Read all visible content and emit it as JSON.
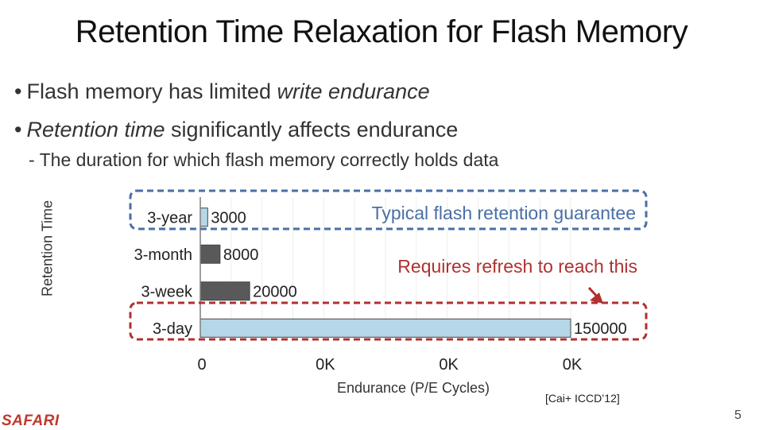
{
  "slide": {
    "title": "Retention Time Relaxation for Flash Memory",
    "bullets": [
      {
        "dot": "•",
        "pre": "Flash memory has limited ",
        "em": "write endurance",
        "post": ""
      },
      {
        "dot": "•",
        "pre": "",
        "em": "Retention time",
        "post": " significantly affects endurance"
      }
    ],
    "sub_bullet": "- The duration for which flash memory correctly holds data",
    "citation": "[Cai+ ICCD’12]",
    "page_number": "5",
    "logo_text": "SAFARI"
  },
  "annotations": {
    "blue_note": "Typical flash retention guarantee",
    "red_note": "Requires refresh to reach this",
    "blue_color": "#4a6fa5",
    "red_color": "#b03030"
  },
  "chart_data": {
    "type": "bar",
    "orientation": "horizontal",
    "categories": [
      "3-year",
      "3-month",
      "3-week",
      "3-day"
    ],
    "values": [
      3000,
      8000,
      20000,
      150000
    ],
    "value_labels": [
      "3000",
      "8000",
      "20000",
      "150000"
    ],
    "bar_colors": [
      "#b5d7e8",
      "#595959",
      "#595959",
      "#b5d7e8"
    ],
    "xlabel": "Endurance (P/E Cycles)",
    "ylabel": "Retention Time",
    "xlim": [
      0,
      150000
    ],
    "x_tick_labels": [
      "0",
      "0K",
      "0K",
      "0K"
    ],
    "grid": true
  }
}
